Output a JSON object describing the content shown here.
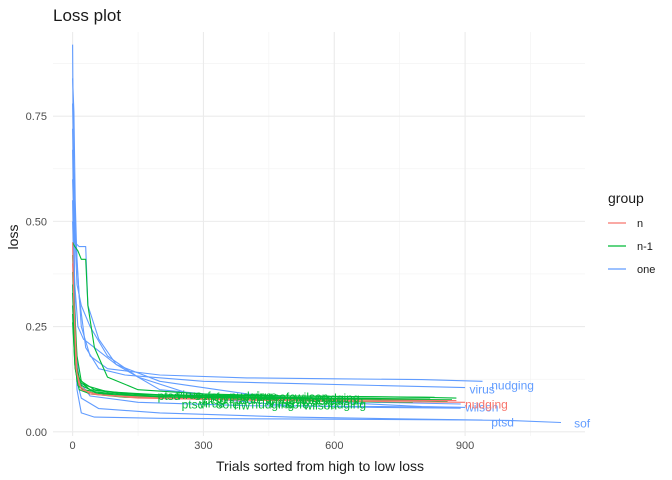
{
  "chart_data": {
    "type": "line",
    "title": "Loss plot",
    "xlabel": "Trials sorted from high to low loss",
    "ylabel": "loss",
    "xlim": [
      -45,
      1175
    ],
    "ylim": [
      -0.01,
      0.95
    ],
    "x_ticks": [
      0,
      300,
      600,
      900
    ],
    "y_ticks": [
      0.0,
      0.25,
      0.5,
      0.75
    ],
    "x_tick_labels": [
      "0",
      "300",
      "600",
      "900"
    ],
    "y_tick_labels": [
      "0.00",
      "0.25",
      "0.50",
      "0.75"
    ],
    "grid": true,
    "legend": {
      "title": "group",
      "position": "right",
      "entries": [
        {
          "label": "n",
          "color": "#F8766D"
        },
        {
          "label": "n-1",
          "color": "#00BA38"
        },
        {
          "label": "one",
          "color": "#619CFF"
        }
      ]
    },
    "series": [
      {
        "group": "one",
        "label": "sof",
        "label_x": 1150,
        "label_y": 0.02,
        "points": [
          [
            0,
            0.92
          ],
          [
            2,
            0.6
          ],
          [
            5,
            0.3
          ],
          [
            10,
            0.1
          ],
          [
            20,
            0.045
          ],
          [
            50,
            0.035
          ],
          [
            200,
            0.032
          ],
          [
            600,
            0.03
          ],
          [
            900,
            0.028
          ],
          [
            1000,
            0.027
          ],
          [
            1120,
            0.022
          ]
        ]
      },
      {
        "group": "one",
        "label": "nudging",
        "label_x": 960,
        "label_y": 0.11,
        "points": [
          [
            0,
            0.84
          ],
          [
            3,
            0.76
          ],
          [
            6,
            0.55
          ],
          [
            10,
            0.4
          ],
          [
            20,
            0.25
          ],
          [
            40,
            0.18
          ],
          [
            80,
            0.15
          ],
          [
            200,
            0.135
          ],
          [
            400,
            0.128
          ],
          [
            600,
            0.126
          ],
          [
            800,
            0.124
          ],
          [
            940,
            0.12
          ]
        ]
      },
      {
        "group": "one",
        "label": "virus",
        "label_x": 910,
        "label_y": 0.1,
        "points": [
          [
            0,
            0.78
          ],
          [
            4,
            0.55
          ],
          [
            8,
            0.45
          ],
          [
            15,
            0.32
          ],
          [
            30,
            0.2
          ],
          [
            60,
            0.15
          ],
          [
            120,
            0.135
          ],
          [
            300,
            0.12
          ],
          [
            500,
            0.115
          ],
          [
            700,
            0.11
          ],
          [
            900,
            0.105
          ]
        ]
      },
      {
        "group": "one",
        "label": "ptsd",
        "label_x": 960,
        "label_y": 0.022,
        "points": [
          [
            0,
            0.67
          ],
          [
            3,
            0.5
          ],
          [
            5,
            0.25
          ],
          [
            10,
            0.12
          ],
          [
            20,
            0.08
          ],
          [
            60,
            0.055
          ],
          [
            200,
            0.045
          ],
          [
            500,
            0.035
          ],
          [
            800,
            0.03
          ],
          [
            940,
            0.028
          ]
        ]
      },
      {
        "group": "one",
        "label": "wilson",
        "label_x": 900,
        "label_y": 0.058,
        "points": [
          [
            0,
            0.6
          ],
          [
            5,
            0.45
          ],
          [
            15,
            0.44
          ],
          [
            30,
            0.44
          ],
          [
            35,
            0.3
          ],
          [
            60,
            0.22
          ],
          [
            100,
            0.16
          ],
          [
            200,
            0.12
          ],
          [
            400,
            0.09
          ],
          [
            600,
            0.07
          ],
          [
            800,
            0.06
          ],
          [
            900,
            0.058
          ]
        ]
      },
      {
        "group": "one",
        "points": [
          [
            0,
            0.72
          ],
          [
            4,
            0.5
          ],
          [
            10,
            0.35
          ],
          [
            20,
            0.3
          ],
          [
            40,
            0.25
          ],
          [
            80,
            0.18
          ],
          [
            150,
            0.13
          ],
          [
            300,
            0.08
          ],
          [
            500,
            0.062
          ],
          [
            700,
            0.058
          ],
          [
            890,
            0.056
          ]
        ]
      },
      {
        "group": "one",
        "points": [
          [
            0,
            0.55
          ],
          [
            3,
            0.4
          ],
          [
            8,
            0.2
          ],
          [
            15,
            0.12
          ],
          [
            40,
            0.085
          ],
          [
            150,
            0.07
          ],
          [
            400,
            0.062
          ],
          [
            700,
            0.06
          ],
          [
            890,
            0.058
          ]
        ]
      },
      {
        "group": "one",
        "points": [
          [
            0,
            0.5
          ],
          [
            5,
            0.35
          ],
          [
            12,
            0.25
          ],
          [
            25,
            0.22
          ],
          [
            50,
            0.2
          ],
          [
            100,
            0.16
          ],
          [
            200,
            0.1
          ],
          [
            400,
            0.08
          ],
          [
            700,
            0.07
          ],
          [
            890,
            0.066
          ]
        ]
      },
      {
        "group": "n",
        "label": "nudging",
        "label_x": 900,
        "label_y": 0.065,
        "points": [
          [
            0,
            0.45
          ],
          [
            3,
            0.3
          ],
          [
            8,
            0.15
          ],
          [
            15,
            0.11
          ],
          [
            40,
            0.09
          ],
          [
            150,
            0.08
          ],
          [
            400,
            0.075
          ],
          [
            700,
            0.072
          ],
          [
            900,
            0.07
          ]
        ]
      },
      {
        "group": "n",
        "points": [
          [
            0,
            0.4
          ],
          [
            4,
            0.28
          ],
          [
            10,
            0.14
          ],
          [
            20,
            0.1
          ],
          [
            60,
            0.088
          ],
          [
            200,
            0.08
          ],
          [
            500,
            0.076
          ],
          [
            880,
            0.074
          ]
        ]
      },
      {
        "group": "n-1",
        "points": [
          [
            0,
            0.45
          ],
          [
            5,
            0.44
          ],
          [
            12,
            0.43
          ],
          [
            20,
            0.41
          ],
          [
            30,
            0.41
          ],
          [
            35,
            0.3
          ],
          [
            50,
            0.2
          ],
          [
            80,
            0.13
          ],
          [
            150,
            0.1
          ],
          [
            300,
            0.09
          ],
          [
            500,
            0.085
          ],
          [
            800,
            0.082
          ],
          [
            880,
            0.08
          ]
        ]
      },
      {
        "group": "n-1",
        "points": [
          [
            0,
            0.42
          ],
          [
            4,
            0.3
          ],
          [
            10,
            0.18
          ],
          [
            20,
            0.12
          ],
          [
            50,
            0.1
          ],
          [
            150,
            0.088
          ],
          [
            400,
            0.082
          ],
          [
            700,
            0.078
          ],
          [
            870,
            0.076
          ]
        ]
      },
      {
        "group": "n-1",
        "points": [
          [
            0,
            0.38
          ],
          [
            4,
            0.25
          ],
          [
            10,
            0.15
          ],
          [
            20,
            0.11
          ],
          [
            50,
            0.095
          ],
          [
            150,
            0.085
          ],
          [
            400,
            0.08
          ],
          [
            700,
            0.075
          ],
          [
            860,
            0.073
          ]
        ]
      },
      {
        "group": "n-1",
        "points": [
          [
            0,
            0.35
          ],
          [
            5,
            0.22
          ],
          [
            10,
            0.12
          ],
          [
            25,
            0.1
          ],
          [
            80,
            0.09
          ],
          [
            200,
            0.083
          ],
          [
            500,
            0.078
          ],
          [
            840,
            0.075
          ]
        ]
      },
      {
        "group": "n-1",
        "points": [
          [
            0,
            0.33
          ],
          [
            5,
            0.2
          ],
          [
            12,
            0.13
          ],
          [
            30,
            0.11
          ],
          [
            80,
            0.095
          ],
          [
            200,
            0.088
          ],
          [
            500,
            0.085
          ],
          [
            830,
            0.082
          ]
        ]
      },
      {
        "group": "n-1",
        "points": [
          [
            0,
            0.3
          ],
          [
            6,
            0.18
          ],
          [
            15,
            0.12
          ],
          [
            40,
            0.1
          ],
          [
            120,
            0.09
          ],
          [
            300,
            0.085
          ],
          [
            600,
            0.08
          ],
          [
            820,
            0.078
          ]
        ]
      },
      {
        "group": "n-1",
        "points": [
          [
            0,
            0.28
          ],
          [
            5,
            0.16
          ],
          [
            12,
            0.11
          ],
          [
            30,
            0.095
          ],
          [
            100,
            0.086
          ],
          [
            300,
            0.08
          ],
          [
            600,
            0.076
          ],
          [
            800,
            0.074
          ]
        ]
      },
      {
        "group": "n-1",
        "points": [
          [
            0,
            0.26
          ],
          [
            6,
            0.15
          ],
          [
            15,
            0.1
          ],
          [
            40,
            0.09
          ],
          [
            120,
            0.082
          ],
          [
            300,
            0.078
          ],
          [
            600,
            0.072
          ],
          [
            780,
            0.07
          ]
        ]
      }
    ],
    "overlap_labels": {
      "color": "#00BA38",
      "texts": [
        "ptsd",
        "virus",
        "sofe",
        "rfw",
        "nudging",
        "virus",
        "sofe",
        "wilson",
        "nudging",
        "ptsd",
        "virus",
        "sofe",
        "rfw",
        "nudging",
        "virus",
        "sofe",
        "wilson",
        "nudging",
        "ptsd",
        "virus",
        "sofe",
        "rfw",
        "nudging",
        "virus",
        "sofe",
        "wilson"
      ],
      "anchors": [
        [
          195,
          0.085
        ],
        [
          238,
          0.087
        ],
        [
          280,
          0.085
        ],
        [
          320,
          0.083
        ],
        [
          360,
          0.085
        ],
        [
          410,
          0.085
        ],
        [
          460,
          0.083
        ],
        [
          510,
          0.083
        ],
        [
          560,
          0.08
        ],
        [
          250,
          0.065
        ],
        [
          290,
          0.067
        ],
        [
          330,
          0.065
        ],
        [
          370,
          0.063
        ],
        [
          410,
          0.065
        ],
        [
          450,
          0.067
        ],
        [
          490,
          0.065
        ],
        [
          530,
          0.063
        ],
        [
          575,
          0.065
        ],
        [
          300,
          0.075
        ],
        [
          345,
          0.077
        ],
        [
          385,
          0.075
        ],
        [
          425,
          0.073
        ],
        [
          465,
          0.075
        ],
        [
          510,
          0.075
        ],
        [
          550,
          0.073
        ],
        [
          590,
          0.073
        ]
      ]
    }
  }
}
